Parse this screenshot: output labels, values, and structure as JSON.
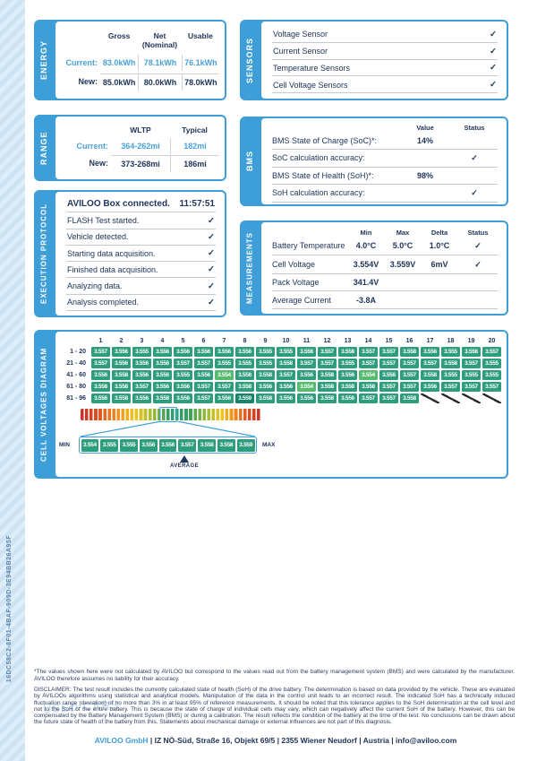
{
  "page": {
    "uuid": "16DC58C2-8F01-4BAF-909D-3E94BB26A95F",
    "watermark": "USED CARS",
    "accent_blue": "#3e9ed8",
    "navy": "#20355a",
    "cell_green": "#2e9d7b"
  },
  "energy": {
    "label": "ENERGY",
    "columns": [
      "Gross",
      "Net (Nominal)",
      "Usable"
    ],
    "rows": [
      {
        "label": "Current:",
        "values": [
          "83.0kWh",
          "78.1kWh",
          "76.1kWh"
        ]
      },
      {
        "label": "New:",
        "values": [
          "85.0kWh",
          "80.0kWh",
          "78.0kWh"
        ]
      }
    ]
  },
  "range": {
    "label": "RANGE",
    "columns": [
      "WLTP",
      "Typical"
    ],
    "rows": [
      {
        "label": "Current:",
        "values": [
          "364-262mi",
          "182mi"
        ]
      },
      {
        "label": "New:",
        "values": [
          "373-268mi",
          "186mi"
        ]
      }
    ]
  },
  "execution_protocol": {
    "label": "EXECUTION PROTOCOL",
    "rows": [
      {
        "text": "AVILOO Box connected.",
        "right": "11:57:51"
      },
      {
        "text": "FLASH Test started.",
        "right": "✓"
      },
      {
        "text": "Vehicle detected.",
        "right": "✓"
      },
      {
        "text": "Starting data acquisition.",
        "right": "✓"
      },
      {
        "text": "Finished data acquisition.",
        "right": "✓"
      },
      {
        "text": "Analyzing data.",
        "right": "✓"
      },
      {
        "text": "Analysis completed.",
        "right": "✓"
      }
    ]
  },
  "sensors": {
    "label": "SENSORS",
    "rows": [
      {
        "text": "Voltage Sensor",
        "check": "✓"
      },
      {
        "text": "Current Sensor",
        "check": "✓"
      },
      {
        "text": "Temperature Sensors",
        "check": "✓"
      },
      {
        "text": "Cell Voltage Sensors",
        "check": "✓"
      }
    ]
  },
  "bms": {
    "label": "BMS",
    "columns": [
      "Value",
      "Status"
    ],
    "rows": [
      {
        "label": "BMS State of Charge (SoC)*:",
        "value": "14%",
        "check": ""
      },
      {
        "label": "SoC calculation accuracy:",
        "value": "",
        "check": "✓"
      },
      {
        "label": "BMS State of Health (SoH)*:",
        "value": "98%",
        "check": ""
      },
      {
        "label": "SoH calculation accuracy:",
        "value": "",
        "check": "✓"
      }
    ]
  },
  "measurements": {
    "label": "MEASUREMENTS",
    "columns": [
      "Min",
      "Max",
      "Delta",
      "Status"
    ],
    "rows": [
      {
        "label": "Battery Temperature",
        "min": "4.0°C",
        "max": "5.0°C",
        "delta": "1.0°C",
        "status": "✓"
      },
      {
        "label": "Cell Voltage",
        "min": "3.554V",
        "max": "3.559V",
        "delta": "6mV",
        "status": "✓"
      },
      {
        "label": "Pack Voltage",
        "min": "341.4V",
        "max": "",
        "delta": "",
        "status": ""
      },
      {
        "label": "Average Current",
        "min": "-3.8A",
        "max": "",
        "delta": "",
        "status": ""
      }
    ]
  },
  "cell_voltages": {
    "label": "CELL VOLTAGES DIAGRAM",
    "col_headers": [
      "1",
      "2",
      "3",
      "4",
      "5",
      "6",
      "7",
      "8",
      "9",
      "10",
      "11",
      "12",
      "13",
      "14",
      "15",
      "16",
      "17",
      "18",
      "19",
      "20"
    ],
    "min_value": "3.554",
    "max_value": "3.559",
    "rows": [
      {
        "label": "1 - 20",
        "values": [
          "3.557",
          "3.556",
          "3.555",
          "3.556",
          "3.556",
          "3.556",
          "3.556",
          "3.556",
          "3.555",
          "3.555",
          "3.556",
          "3.557",
          "3.558",
          "3.557",
          "3.557",
          "3.558",
          "3.556",
          "3.555",
          "3.556",
          "3.557"
        ]
      },
      {
        "label": "21 - 40",
        "values": [
          "3.557",
          "3.556",
          "3.556",
          "3.556",
          "3.557",
          "3.557",
          "3.555",
          "3.555",
          "3.555",
          "3.558",
          "3.557",
          "3.557",
          "3.555",
          "3.557",
          "3.557",
          "3.557",
          "3.557",
          "3.558",
          "3.557",
          "3.555"
        ]
      },
      {
        "label": "41 - 60",
        "values": [
          "3.556",
          "3.558",
          "3.556",
          "3.556",
          "3.555",
          "3.556",
          "3.554",
          "3.558",
          "3.558",
          "3.557",
          "3.556",
          "3.558",
          "3.556",
          "3.554",
          "3.556",
          "3.557",
          "3.558",
          "3.555",
          "3.555",
          "3.555"
        ]
      },
      {
        "label": "61 - 80",
        "values": [
          "3.558",
          "3.558",
          "3.557",
          "3.556",
          "3.556",
          "3.557",
          "3.557",
          "3.558",
          "3.556",
          "3.556",
          "3.554",
          "3.558",
          "3.558",
          "3.558",
          "3.557",
          "3.557",
          "3.556",
          "3.557",
          "3.557",
          "3.557"
        ]
      },
      {
        "label": "81 - 96",
        "values": [
          "3.556",
          "3.558",
          "3.556",
          "3.558",
          "3.556",
          "3.557",
          "3.556",
          "3.559",
          "3.558",
          "3.556",
          "3.556",
          "3.558",
          "3.556",
          "3.557",
          "3.557",
          "3.558"
        ]
      }
    ],
    "scale": {
      "min_label": "MIN",
      "max_label": "MAX",
      "average_label": "AVERAGE",
      "cells": [
        "3.554",
        "3.555",
        "3.555",
        "3.556",
        "3.556",
        "3.557",
        "3.558",
        "3.558",
        "3.559"
      ]
    }
  },
  "footnote": "*The values shown here were not calculated by AVILOO but correspond to the values read out from the battery management system (BMS) and were calculated by the manufacturer. AVILOO therefore assumes no liability for their accuracy.",
  "disclaimer": "DISCLAIMER: The test result includes the currently calculated state of health (SoH) of the drive battery. The determination is based on data provided by the vehicle. These are evaluated by AVILOOs algorithms using statistical and analytical models. Manipulation of the data in the control unit leads to an incorrect result. The indicated SoH has a technically induced fluctuation range (deviation) of no more than 3% in at least 95% of reference measurements. It should be noted that this tolerance applies to the SoH determination at the cell level and not to the SoH of the entire battery. This is because the state of charge of individual cells may vary, which can negatively affect the current SoH of the battery. However, this can be compensated by the Battery Management System (BMS) or during a calibration. The result reflects the condition of the battery at the time of the test. No conclusions can be drawn about the future state of health of the battery from this. Statements about mechanical damage or external influences are not part of this diagnosis.",
  "footer": {
    "company": "AVILOO GmbH",
    "address": " | IZ NÖ-Süd, Straße 16, Objekt 69/5 | 2355 Wiener Neudorf | Austria | info@aviloo.com"
  }
}
